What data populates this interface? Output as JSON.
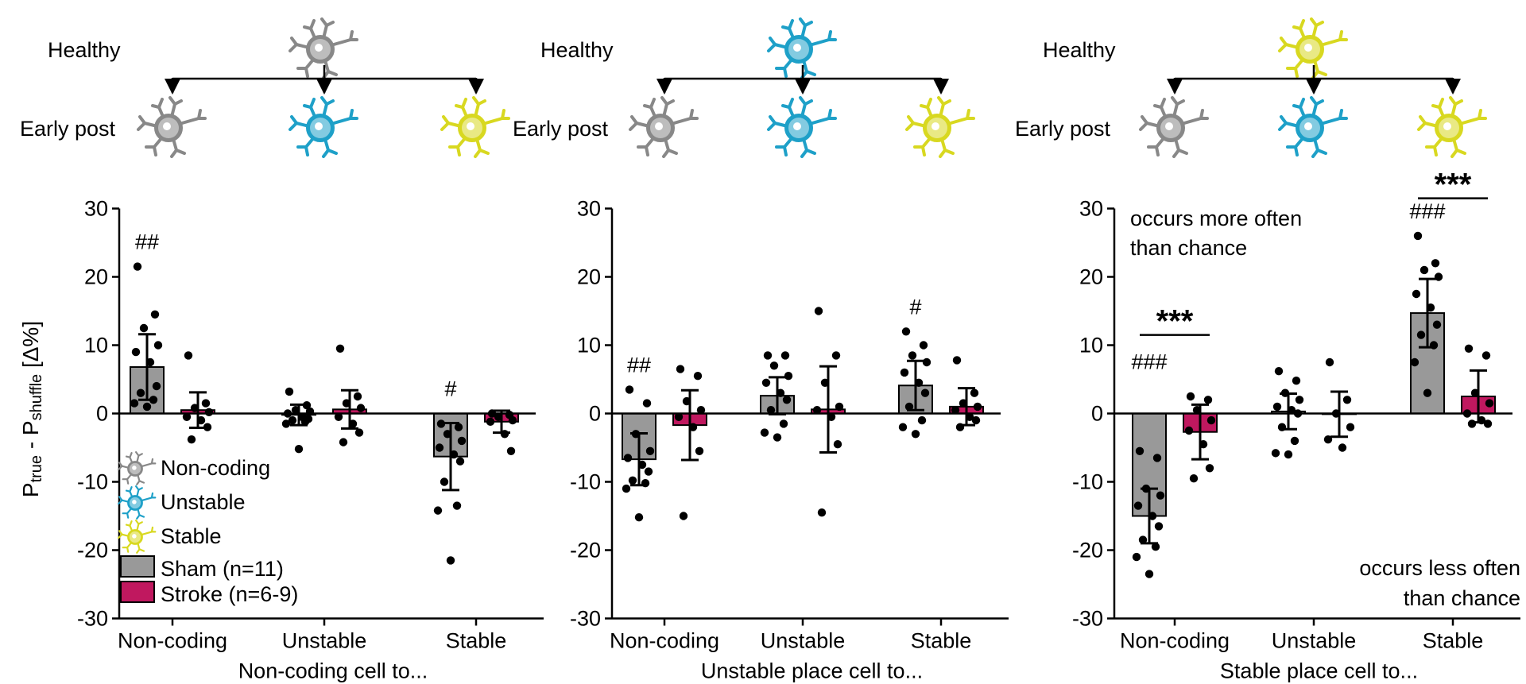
{
  "colors": {
    "sham": "#999999",
    "stroke": "#c0185f",
    "noncoding_cell": "#888888",
    "unstable_cell": "#1ea0c8",
    "stable_cell": "#d8d820",
    "axis": "#000000"
  },
  "ylabel": {
    "main": "P",
    "sub1": "true",
    "mid": " - P",
    "sub2": "shuffle",
    "unit": " [Δ%]"
  },
  "schematic": {
    "healthy": "Healthy",
    "early_post": "Early post"
  },
  "legend": {
    "noncoding": "Non-coding",
    "unstable": "Unstable",
    "stable": "Stable",
    "sham": "Sham (n=11)",
    "stroke": "Stroke (n=6-9)"
  },
  "annotations": {
    "more_often": [
      "occurs more often",
      "than chance"
    ],
    "less_often": [
      "occurs less often",
      "than chance"
    ]
  },
  "chart_data": [
    {
      "type": "bar",
      "xlabel": "Non-coding cell to...",
      "categories": [
        "Non-coding",
        "Unstable",
        "Stable"
      ],
      "ylim": [
        -30,
        30
      ],
      "yticks": [
        -30,
        -20,
        -10,
        0,
        10,
        20,
        30
      ],
      "source_cell": "noncoding",
      "series": [
        {
          "name": "Sham (n=11)",
          "values": [
            6.8,
            -0.2,
            -6.3
          ],
          "sd": [
            4.8,
            1.5,
            4.9
          ],
          "points": [
            [
              21.5,
              14.5,
              12.5,
              10,
              9,
              7.5,
              4,
              3,
              2,
              1.5,
              1
            ],
            [
              3.2,
              1.2,
              0.5,
              0.3,
              0,
              -0.5,
              -0.8,
              -1,
              -1.2,
              -1.5,
              -5.2
            ],
            [
              -1.5,
              -2,
              -3,
              -4,
              -5,
              -6,
              -7,
              -10,
              -13.5,
              -14.2,
              -21.5
            ]
          ]
        },
        {
          "name": "Stroke (n=6-9)",
          "values": [
            0.5,
            0.6,
            -1.2
          ],
          "sd": [
            2.6,
            2.8,
            1.6
          ],
          "points": [
            [
              8.5,
              1.5,
              0.8,
              0.2,
              -0.5,
              -1,
              -2,
              -3.8
            ],
            [
              9.5,
              2.5,
              1.5,
              0.8,
              -0.5,
              -1.5,
              -2.8,
              -4.2
            ],
            [
              0,
              -0.2,
              -0.5,
              -1,
              -1.2,
              -3,
              -5.5
            ]
          ]
        }
      ],
      "marks": [
        {
          "category": 0,
          "series": 0,
          "text": "##"
        },
        {
          "category": 2,
          "series": 0,
          "text": "#"
        }
      ]
    },
    {
      "type": "bar",
      "xlabel": "Unstable place cell to...",
      "categories": [
        "Non-coding",
        "Unstable",
        "Stable"
      ],
      "ylim": [
        -30,
        30
      ],
      "yticks": [
        -30,
        -20,
        -10,
        0,
        10,
        20,
        30
      ],
      "source_cell": "unstable",
      "series": [
        {
          "name": "Sham (n=11)",
          "values": [
            -6.7,
            2.6,
            4.1
          ],
          "sd": [
            3.8,
            2.7,
            3.6
          ],
          "points": [
            [
              3.5,
              1.5,
              -3,
              -5.5,
              -6.5,
              -7.5,
              -8.5,
              -9.8,
              -10.2,
              -11,
              -15.2
            ],
            [
              8.5,
              8.5,
              7,
              5.5,
              4.5,
              3,
              2,
              0.5,
              -1.5,
              -2.8,
              -3.5
            ],
            [
              12,
              10,
              8.5,
              7.5,
              6,
              4.5,
              3,
              1,
              -1,
              -2,
              -3
            ]
          ]
        },
        {
          "name": "Stroke (n=6-9)",
          "values": [
            -1.7,
            0.6,
            1.0
          ],
          "sd": [
            5.1,
            6.3,
            2.7
          ],
          "points": [
            [
              6.5,
              5.5,
              1.8,
              0.5,
              -0.5,
              -2,
              -5.5,
              -15
            ],
            [
              15,
              8.5,
              4.5,
              1,
              0.5,
              -0.5,
              -4.5,
              -14.5
            ],
            [
              7.8,
              3,
              1.5,
              1,
              0.5,
              -0.5,
              -1,
              -2
            ]
          ]
        }
      ],
      "marks": [
        {
          "category": 0,
          "series": 0,
          "text": "##"
        },
        {
          "category": 2,
          "series": 0,
          "text": "#"
        }
      ]
    },
    {
      "type": "bar",
      "xlabel": "Stable place cell to...",
      "categories": [
        "Non-coding",
        "Unstable",
        "Stable"
      ],
      "ylim": [
        -30,
        30
      ],
      "yticks": [
        -30,
        -20,
        -10,
        0,
        10,
        20,
        30
      ],
      "source_cell": "stable",
      "series": [
        {
          "name": "Sham (n=11)",
          "values": [
            -15,
            0.3,
            14.7
          ],
          "sd": [
            4,
            2.6,
            5
          ],
          "points": [
            [
              -5.5,
              -6.5,
              -11,
              -12,
              -13.5,
              -15,
              -16.5,
              -18.5,
              -19.5,
              -21,
              -23.5
            ],
            [
              6.2,
              4.8,
              3,
              2,
              1,
              0.5,
              0,
              -2,
              -4,
              -5.8,
              -6
            ],
            [
              26,
              22,
              21,
              20,
              17.5,
              15.5,
              13,
              11.5,
              10,
              7.5,
              3
            ]
          ]
        },
        {
          "name": "Stroke (n=6-9)",
          "values": [
            -2.7,
            -0.1,
            2.5
          ],
          "sd": [
            4,
            3.3,
            3.8
          ],
          "points": [
            [
              2.5,
              2,
              0.5,
              -1,
              -2.5,
              -4.5,
              -8,
              -9.5
            ],
            [
              7.5,
              2,
              0,
              -2,
              -3.8,
              -5
            ],
            [
              9.5,
              8.5,
              3,
              1.5,
              0,
              -1,
              -1.5,
              -1.5
            ]
          ]
        }
      ],
      "marks": [
        {
          "category": 0,
          "series": 0,
          "text": "###"
        },
        {
          "category": 2,
          "series": 0,
          "text": "###"
        }
      ],
      "significance": [
        {
          "category": 0,
          "text": "***"
        },
        {
          "category": 2,
          "text": "***"
        }
      ]
    }
  ]
}
